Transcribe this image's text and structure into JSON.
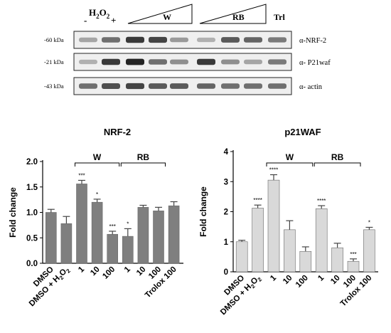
{
  "blot": {
    "h2o2_label": "H",
    "h2o2_sub": "2",
    "h2o2_o": "O",
    "h2o2_sub2": "2",
    "lane_minus": "-",
    "lane_plus": "+",
    "group_w": "W",
    "group_rb": "RB",
    "group_trl": "Trl",
    "rows": [
      {
        "kda": "-60 kDa",
        "antibody": "α-NRF-2",
        "intensity": [
          0.35,
          0.6,
          0.85,
          0.8,
          0.4,
          0.3,
          0.7,
          0.65,
          0.55
        ]
      },
      {
        "kda": "-21 kDa",
        "antibody": "α- P21waf",
        "intensity": [
          0.3,
          0.85,
          0.95,
          0.6,
          0.45,
          0.85,
          0.45,
          0.35,
          0.55
        ]
      },
      {
        "kda": "-43 kDa",
        "antibody": "α- actin",
        "intensity": [
          0.6,
          0.75,
          0.8,
          0.7,
          0.7,
          0.65,
          0.6,
          0.6,
          0.6
        ]
      }
    ]
  },
  "chart_data": [
    {
      "type": "bar",
      "title": "NRF-2",
      "ylabel": "Fold change",
      "ylim": [
        0,
        2.0
      ],
      "yticks": [
        "0.0",
        "0.5",
        "1.0",
        "1.5",
        "2.0"
      ],
      "categories": [
        "DMSO",
        "DMSO + H2O2",
        "1",
        "10",
        "100",
        "1",
        "10",
        "100",
        "Trolox 100"
      ],
      "values": [
        1.0,
        0.78,
        1.56,
        1.2,
        0.57,
        0.53,
        1.1,
        1.03,
        1.13
      ],
      "errors": [
        0.06,
        0.14,
        0.07,
        0.06,
        0.06,
        0.15,
        0.04,
        0.07,
        0.08
      ],
      "significance": [
        "",
        "",
        "***",
        "*",
        "***",
        "*",
        "",
        "",
        ""
      ],
      "groups": [
        {
          "label": "W",
          "from": 2,
          "to": 4
        },
        {
          "label": "RB",
          "from": 5,
          "to": 7
        }
      ],
      "bar_color": "#7f7f7f"
    },
    {
      "type": "bar",
      "title": "p21WAF",
      "ylabel": "Fold change",
      "ylim": [
        0,
        4
      ],
      "yticks": [
        "0",
        "1",
        "2",
        "3",
        "4"
      ],
      "categories": [
        "DMSO",
        "DMSO + H2O2",
        "1",
        "10",
        "100",
        "1",
        "10",
        "100",
        "Trolox 100"
      ],
      "values": [
        1.0,
        2.12,
        3.05,
        1.4,
        0.68,
        2.1,
        0.8,
        0.35,
        1.4
      ],
      "errors": [
        0.05,
        0.1,
        0.18,
        0.3,
        0.15,
        0.1,
        0.15,
        0.08,
        0.08
      ],
      "significance": [
        "",
        "****",
        "****",
        "",
        "",
        "****",
        "",
        "***",
        "*"
      ],
      "groups": [
        {
          "label": "W",
          "from": 2,
          "to": 4
        },
        {
          "label": "RB",
          "from": 5,
          "to": 7
        }
      ],
      "bar_color": "#d9d9d9"
    }
  ]
}
